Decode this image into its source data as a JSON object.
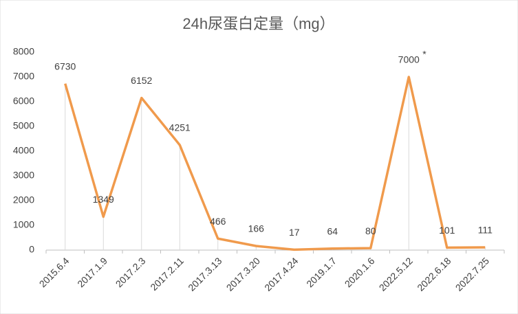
{
  "chart_data": {
    "type": "line",
    "title": "24h尿蛋白定量（mg）",
    "categories": [
      "2015.6.4",
      "2017.1.9",
      "2017.2.3",
      "2017.2.11",
      "2017.3.13",
      "2017.3.20",
      "2017.4.24",
      "2019.1.7",
      "2020.1.6",
      "2022.5.12",
      "2022.6.18",
      "2022.7.25"
    ],
    "values": [
      6730,
      1349,
      6152,
      4251,
      466,
      166,
      17,
      64,
      80,
      7000,
      101,
      111
    ],
    "color": "#f09a4c",
    "annotation": "*",
    "annotation_color": "#e02020",
    "ylim": [
      0,
      8000
    ],
    "yticks": [
      0,
      1000,
      2000,
      3000,
      4000,
      5000,
      6000,
      7000,
      8000
    ],
    "drop_lines": true,
    "grid": false
  }
}
